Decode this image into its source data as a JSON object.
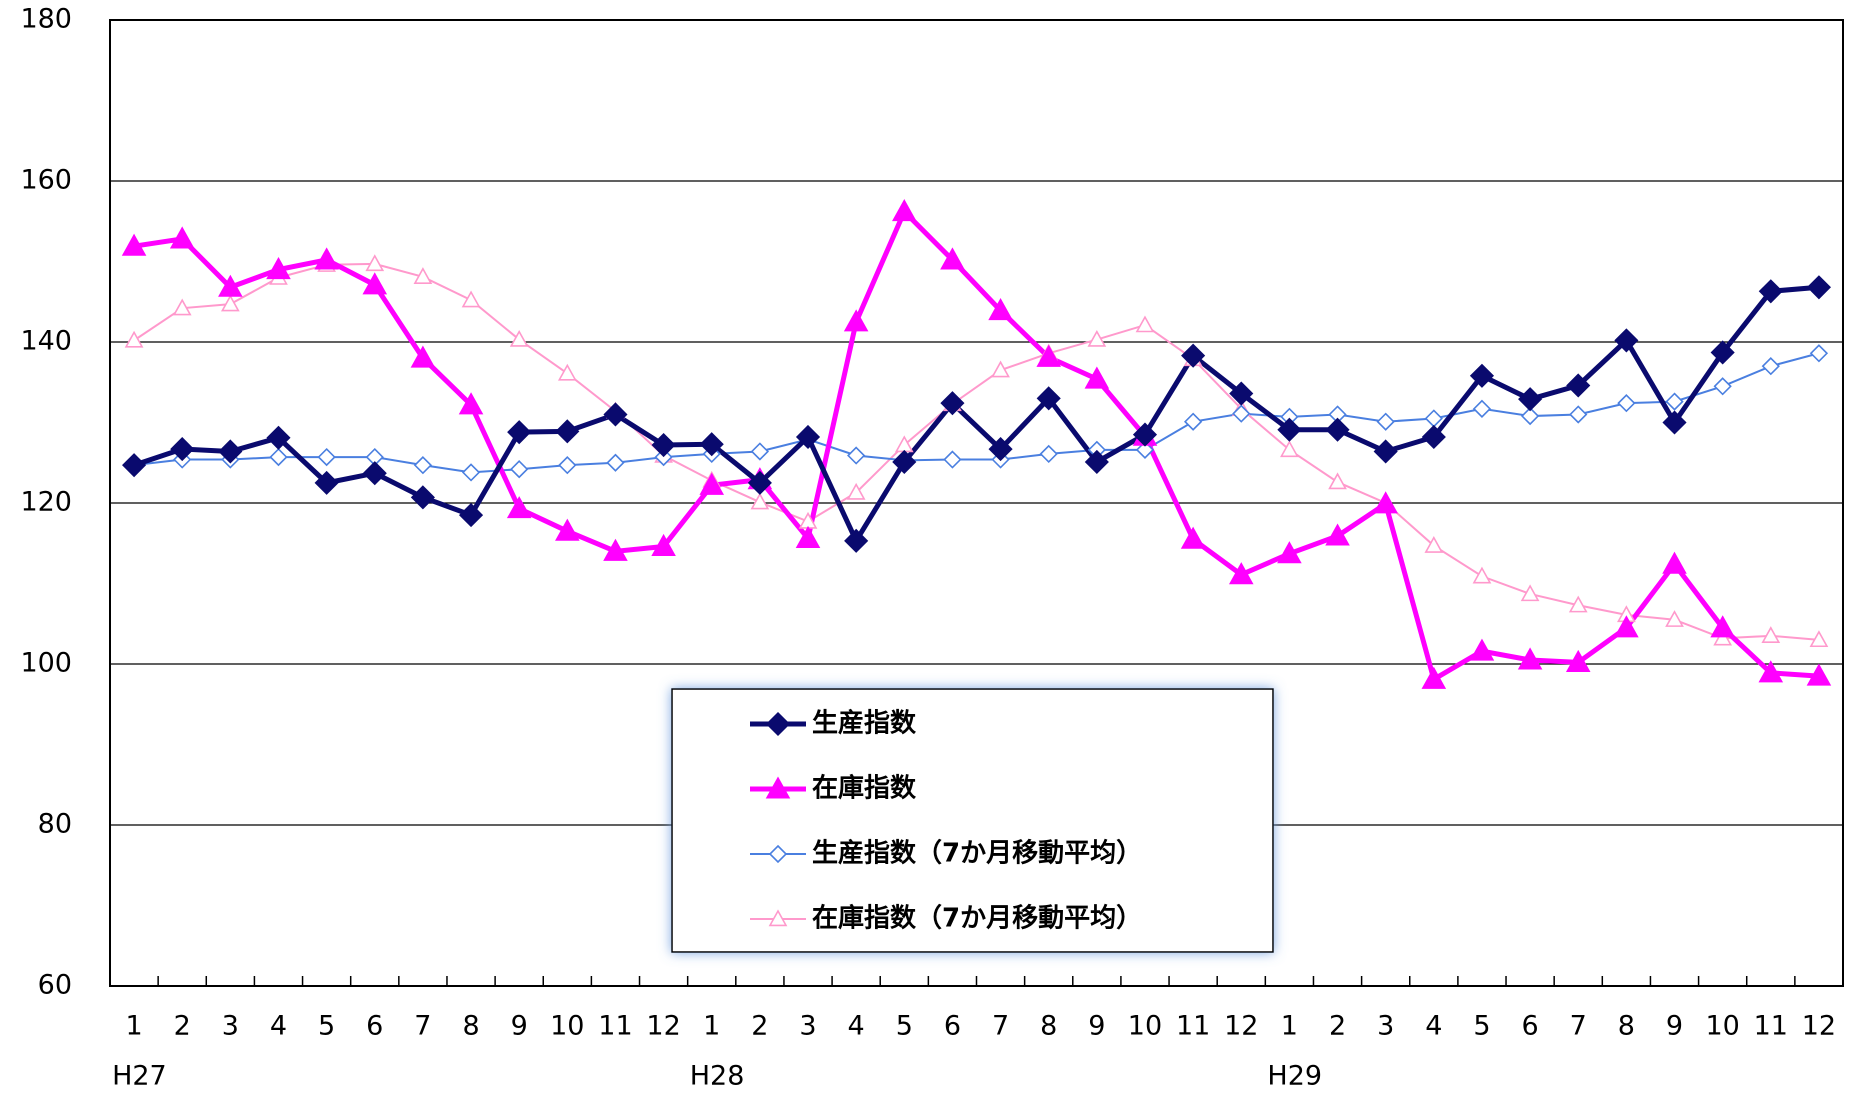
{
  "chart_data": {
    "type": "line",
    "categories": [
      "1",
      "2",
      "3",
      "4",
      "5",
      "6",
      "7",
      "8",
      "9",
      "10",
      "11",
      "12",
      "1",
      "2",
      "3",
      "4",
      "5",
      "6",
      "7",
      "8",
      "9",
      "10",
      "11",
      "12",
      "1",
      "2",
      "3",
      "4",
      "5",
      "6",
      "7",
      "8",
      "9",
      "10",
      "11",
      "12"
    ],
    "x_groups": [
      "H27",
      null,
      null,
      null,
      null,
      null,
      null,
      null,
      null,
      null,
      null,
      null,
      "H28",
      null,
      null,
      null,
      null,
      null,
      null,
      null,
      null,
      null,
      null,
      null,
      "H29",
      null,
      null,
      null,
      null,
      null,
      null,
      null,
      null,
      null,
      null,
      null
    ],
    "ylim": [
      60,
      180
    ],
    "yticks": [
      60,
      80,
      100,
      120,
      140,
      160,
      180
    ],
    "grid": true,
    "series": [
      {
        "name": "生産指数",
        "color": "#0a0a6e",
        "marker": "diamond",
        "filled": true,
        "values": [
          124.7,
          126.7,
          126.4,
          128.1,
          122.5,
          123.7,
          120.7,
          118.5,
          128.8,
          128.9,
          131.0,
          127.2,
          127.3,
          122.5,
          128.2,
          115.3,
          125.1,
          132.4,
          126.7,
          133.0,
          125.1,
          128.5,
          138.3,
          133.6,
          129.1,
          129.1,
          126.4,
          128.2,
          135.8,
          132.9,
          134.6,
          140.2,
          130.0,
          138.7,
          146.3,
          146.8
        ]
      },
      {
        "name": "在庫指数",
        "color": "#ff00ff",
        "marker": "triangle",
        "filled": true,
        "values": [
          151.9,
          152.8,
          146.8,
          149.0,
          150.2,
          147.1,
          138.0,
          132.2,
          119.3,
          116.5,
          114.0,
          114.6,
          122.2,
          122.9,
          115.6,
          142.5,
          156.2,
          150.2,
          143.9,
          138.1,
          135.4,
          128.3,
          115.5,
          111.1,
          113.7,
          115.9,
          119.9,
          98.1,
          101.6,
          100.5,
          100.2,
          104.5,
          112.4,
          104.5,
          98.9,
          98.5
        ]
      },
      {
        "name": "生産指数（7か月移動平均）",
        "color": "#4a7fe0",
        "marker": "diamond",
        "filled": false,
        "values": [
          124.7,
          125.4,
          125.4,
          125.7,
          125.7,
          125.7,
          124.7,
          123.8,
          124.2,
          124.7,
          125.0,
          125.7,
          126.1,
          126.4,
          127.9,
          125.9,
          125.3,
          125.4,
          125.4,
          126.1,
          126.6,
          126.6,
          130.1,
          131.1,
          130.7,
          131.0,
          130.1,
          130.5,
          131.7,
          130.8,
          131.0,
          132.4,
          132.6,
          134.5,
          137.0,
          138.6
        ]
      },
      {
        "name": "在庫指数（7か月移動平均）",
        "color": "#ff99cc",
        "marker": "triangle",
        "filled": false,
        "values": [
          140.2,
          144.2,
          144.7,
          148.0,
          149.6,
          149.7,
          148.1,
          145.2,
          140.3,
          136.1,
          131.4,
          125.9,
          122.8,
          120.1,
          117.7,
          121.3,
          127.2,
          132.3,
          136.5,
          138.6,
          140.3,
          142.1,
          137.9,
          131.7,
          126.6,
          122.6,
          120.0,
          114.7,
          110.9,
          108.7,
          107.3,
          106.1,
          105.5,
          103.2,
          103.5,
          103.0
        ]
      }
    ]
  }
}
